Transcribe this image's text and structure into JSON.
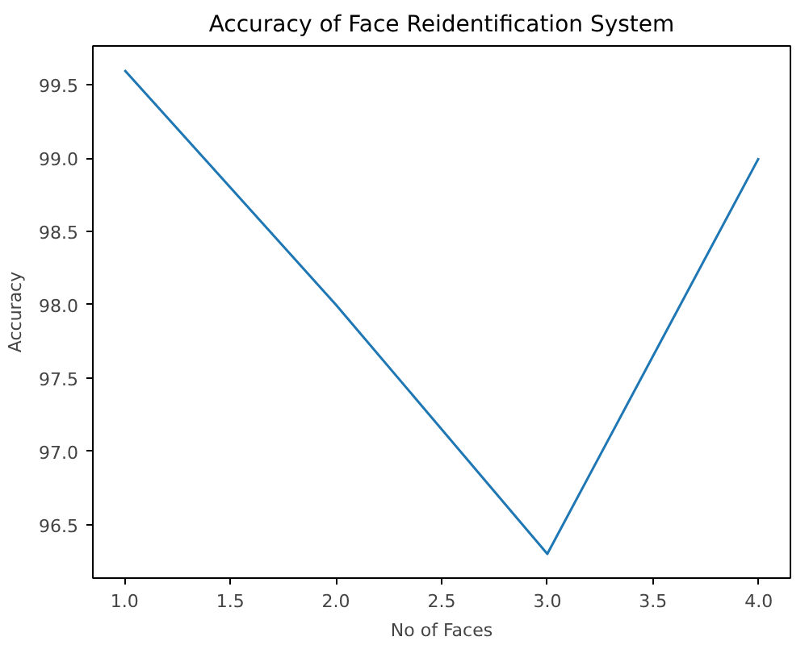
{
  "chart_data": {
    "type": "line",
    "title": "Accuracy of Face Reidentification System",
    "xlabel": "No of Faces",
    "ylabel": "Accuracy",
    "x": [
      1,
      2,
      3,
      4
    ],
    "series": [
      {
        "color": "#1f77b4",
        "values": [
          99.6,
          98.0,
          96.3,
          99.0
        ]
      }
    ],
    "xlim": [
      0.85,
      4.15
    ],
    "xticks": [
      {
        "value": 1,
        "label": "1.0"
      },
      1.5,
      {
        "value": 2,
        "label": "2.0"
      },
      2.5,
      {
        "value": 3,
        "label": "3.0"
      },
      3.5,
      {
        "value": 4,
        "label": "4.0"
      }
    ],
    "ylim": [
      96.135,
      99.765
    ],
    "yticks": [
      96.5,
      {
        "value": 97,
        "label": "97.0"
      },
      97.5,
      {
        "value": 98,
        "label": "98.0"
      },
      98.5,
      {
        "value": 99,
        "label": "99.0"
      },
      99.5
    ],
    "grid": false,
    "marker": "none",
    "line_style": "solid"
  }
}
